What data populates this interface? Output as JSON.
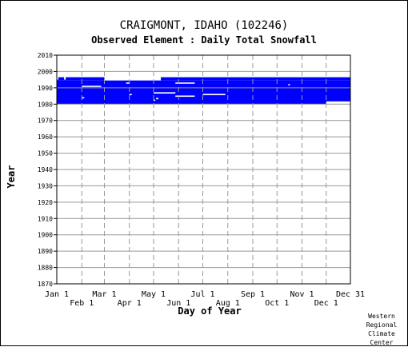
{
  "chart_data": {
    "type": "heatmap",
    "title": "CRAIGMONT, IDAHO   (102246)",
    "subtitle": "Observed Element : Daily Total Snowfall",
    "xlabel": "Day of Year",
    "ylabel": "Year",
    "credit": "Western Regional Climate Center",
    "ylim": [
      1870,
      2010
    ],
    "yticks": [
      2010,
      2000,
      1990,
      1980,
      1970,
      1960,
      1950,
      1940,
      1930,
      1920,
      1910,
      1900,
      1890,
      1880,
      1870
    ],
    "xticks_upper": [
      {
        "day": 1,
        "label": "Jan 1"
      },
      {
        "day": 60,
        "label": "Mar 1"
      },
      {
        "day": 121,
        "label": "May 1"
      },
      {
        "day": 182,
        "label": "Jul 1"
      },
      {
        "day": 244,
        "label": "Sep 1"
      },
      {
        "day": 305,
        "label": "Nov 1"
      },
      {
        "day": 365,
        "label": "Dec 31"
      }
    ],
    "xticks_lower": [
      {
        "day": 32,
        "label": "Feb 1"
      },
      {
        "day": 91,
        "label": "Apr 1"
      },
      {
        "day": 152,
        "label": "Jun 1"
      },
      {
        "day": 213,
        "label": "Aug 1"
      },
      {
        "day": 274,
        "label": "Oct 1"
      },
      {
        "day": 335,
        "label": "Dec 1"
      }
    ],
    "fill_color": "#0000ff",
    "grid_color": "#999999",
    "observed_periods": [
      {
        "day_start": 1,
        "day_end": 365,
        "year_start": 1980,
        "year_end": 1994.5
      },
      {
        "day_start": 1,
        "day_end": 60,
        "year_start": 1994.5,
        "year_end": 1996.5
      },
      {
        "day_start": 130,
        "day_end": 365,
        "year_start": 1994.5,
        "year_end": 1996.5
      }
    ],
    "missing_periods": [
      {
        "day_start": 1,
        "day_end": 3,
        "year_start": 1995,
        "year_end": 1996.5
      },
      {
        "day_start": 10,
        "day_end": 12,
        "year_start": 1995,
        "year_end": 1996.5
      },
      {
        "day_start": 32,
        "day_end": 56,
        "year_start": 1990.5,
        "year_end": 1991.3
      },
      {
        "day_start": 32,
        "day_end": 35,
        "year_start": 1983.5,
        "year_end": 1984.3
      },
      {
        "day_start": 87,
        "day_end": 91,
        "year_start": 1992.5,
        "year_end": 1993.3
      },
      {
        "day_start": 91,
        "day_end": 94,
        "year_start": 1985.5,
        "year_end": 1986.3
      },
      {
        "day_start": 112,
        "day_end": 114,
        "year_start": 1995,
        "year_end": 1996
      },
      {
        "day_start": 121,
        "day_end": 148,
        "year_start": 1986.5,
        "year_end": 1987.3
      },
      {
        "day_start": 121,
        "day_end": 123,
        "year_start": 1982,
        "year_end": 1982.8
      },
      {
        "day_start": 124,
        "day_end": 127,
        "year_start": 1983,
        "year_end": 1983.8
      },
      {
        "day_start": 148,
        "day_end": 172,
        "year_start": 1992.5,
        "year_end": 1993.3
      },
      {
        "day_start": 148,
        "day_end": 172,
        "year_start": 1984.5,
        "year_end": 1985.3
      },
      {
        "day_start": 182,
        "day_end": 210,
        "year_start": 1985.5,
        "year_end": 1986.3
      },
      {
        "day_start": 288,
        "day_end": 290,
        "year_start": 1991.5,
        "year_end": 1992.3
      },
      {
        "day_start": 335,
        "day_end": 365,
        "year_start": 1980,
        "year_end": 1981.7
      }
    ]
  }
}
